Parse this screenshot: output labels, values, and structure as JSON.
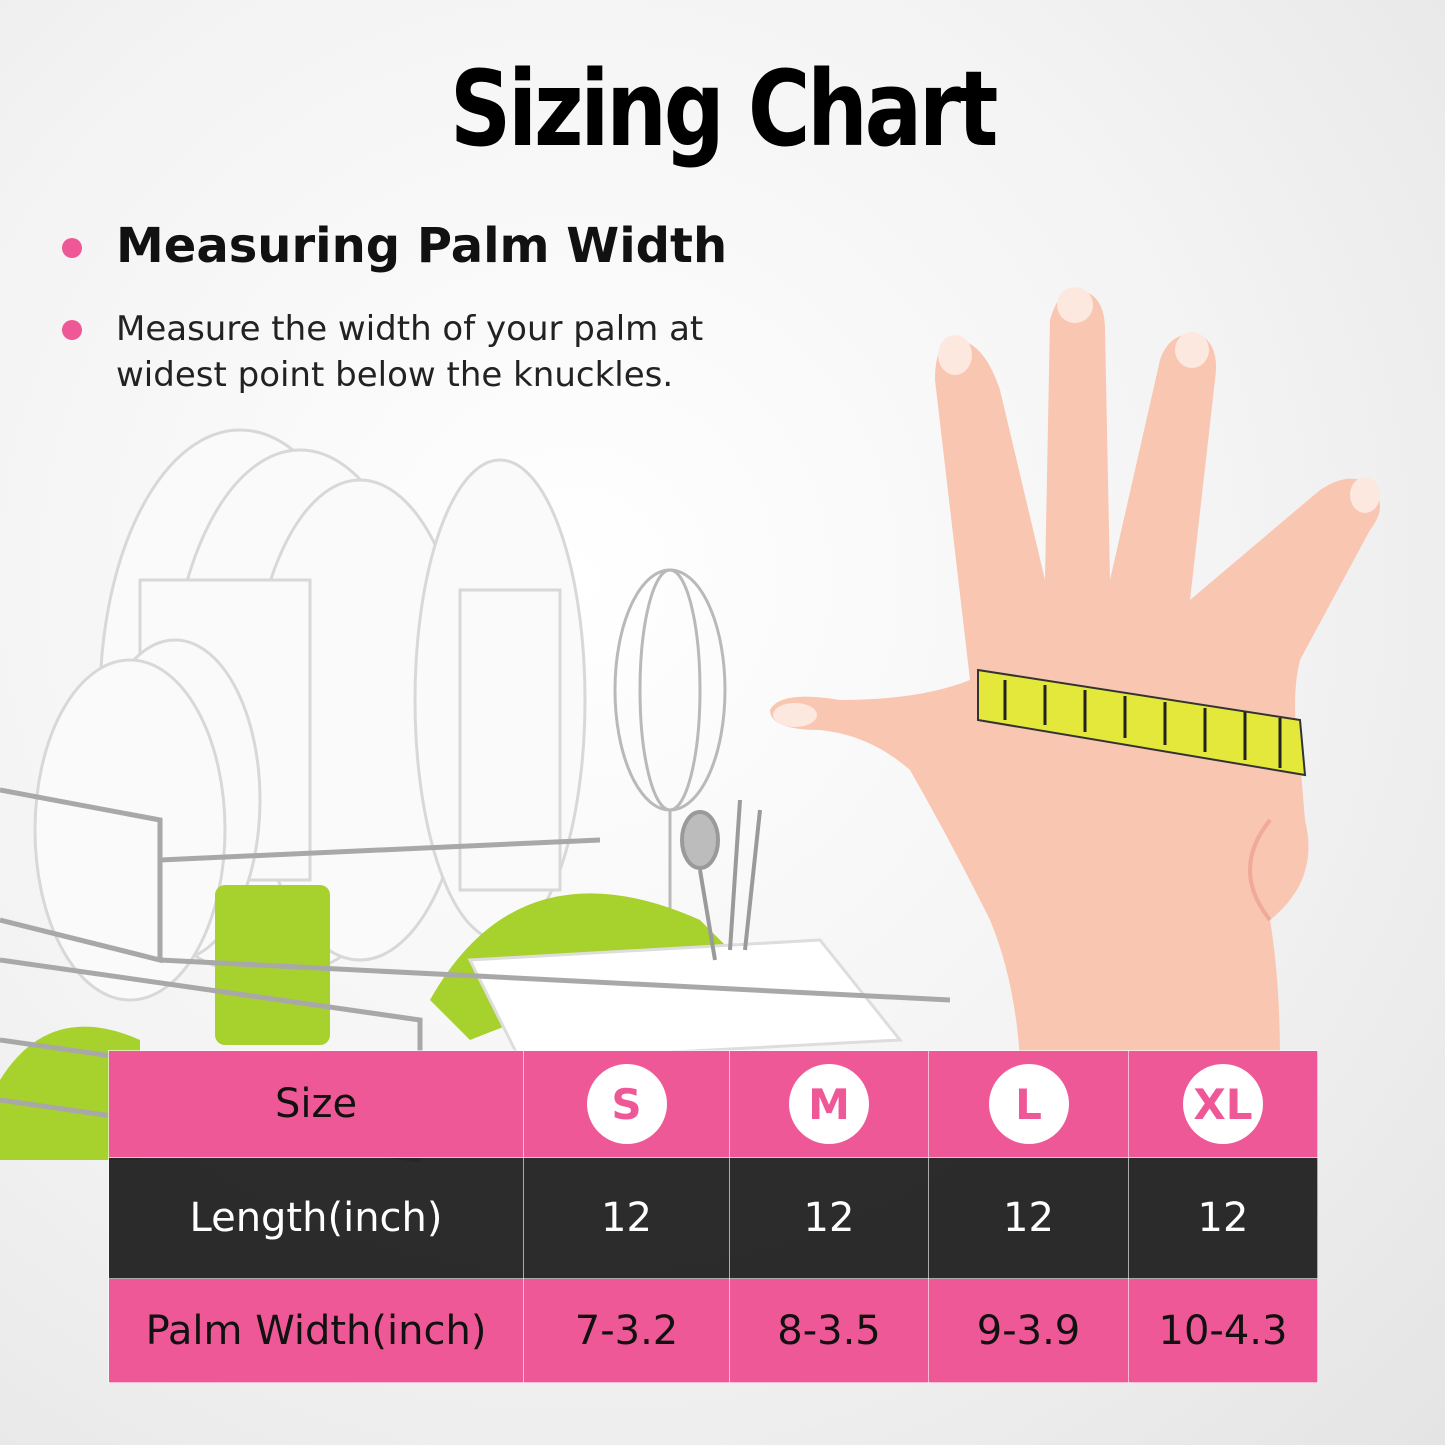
{
  "colors": {
    "accent": "#ef5896",
    "dark_row": "#1c1c1c",
    "skin": "#f9c6b2",
    "tape": "#e4e83a"
  },
  "title": "Sizing Chart",
  "section": {
    "heading": "Measuring Palm Width",
    "description": "Measure the width of your palm at widest point below the knuckles."
  },
  "table": {
    "header_label": "Size",
    "sizes": [
      "S",
      "M",
      "L",
      "XL"
    ],
    "rows": [
      {
        "label": "Length(inch)",
        "values": [
          "12",
          "12",
          "12",
          "12"
        ]
      },
      {
        "label": "Palm Width(inch)",
        "values": [
          "7-3.2",
          "8-3.5",
          "9-3.9",
          "10-4.3"
        ]
      }
    ]
  }
}
